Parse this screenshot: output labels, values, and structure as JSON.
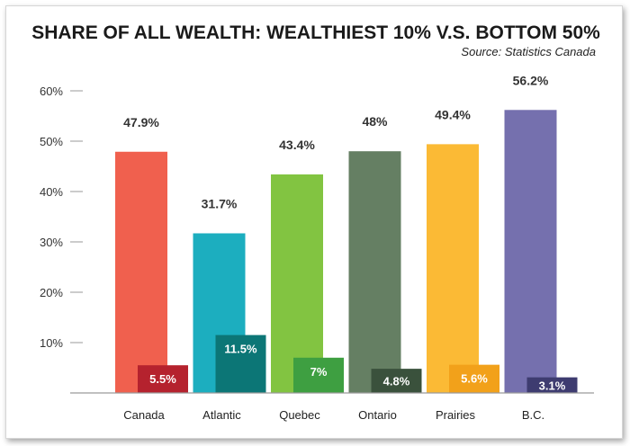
{
  "chart_data": {
    "type": "bar",
    "title": "SHARE OF ALL WEALTH: WEALTHIEST 10% V.S. BOTTOM 50%",
    "subtitle": "Source: Statistics Canada",
    "xlabel": "",
    "ylabel": "",
    "ylim": [
      0,
      60
    ],
    "yticks": [
      "10%",
      "20%",
      "30%",
      "40%",
      "50%",
      "60%"
    ],
    "categories": [
      "Canada",
      "Atlantic",
      "Quebec",
      "Ontario",
      "Prairies",
      "B.C."
    ],
    "series": [
      {
        "name": "Wealthiest 10%",
        "values": [
          47.9,
          31.7,
          43.4,
          48,
          49.4,
          56.2
        ],
        "labels": [
          "47.9%",
          "31.7%",
          "43.4%",
          "48%",
          "49.4%",
          "56.2%"
        ],
        "colors": [
          "#f0604e",
          "#1caebf",
          "#82c441",
          "#657f63",
          "#fbba35",
          "#7570ae"
        ]
      },
      {
        "name": "Bottom 50%",
        "values": [
          5.5,
          11.5,
          7,
          4.8,
          5.6,
          3.1
        ],
        "labels": [
          "5.5%",
          "11.5%",
          "7%",
          "4.8%",
          "5.6%",
          "3.1%"
        ],
        "colors": [
          "#b5222e",
          "#0c7676",
          "#3e9f41",
          "#3a513c",
          "#f2a11a",
          "#3e3c70"
        ]
      }
    ]
  }
}
